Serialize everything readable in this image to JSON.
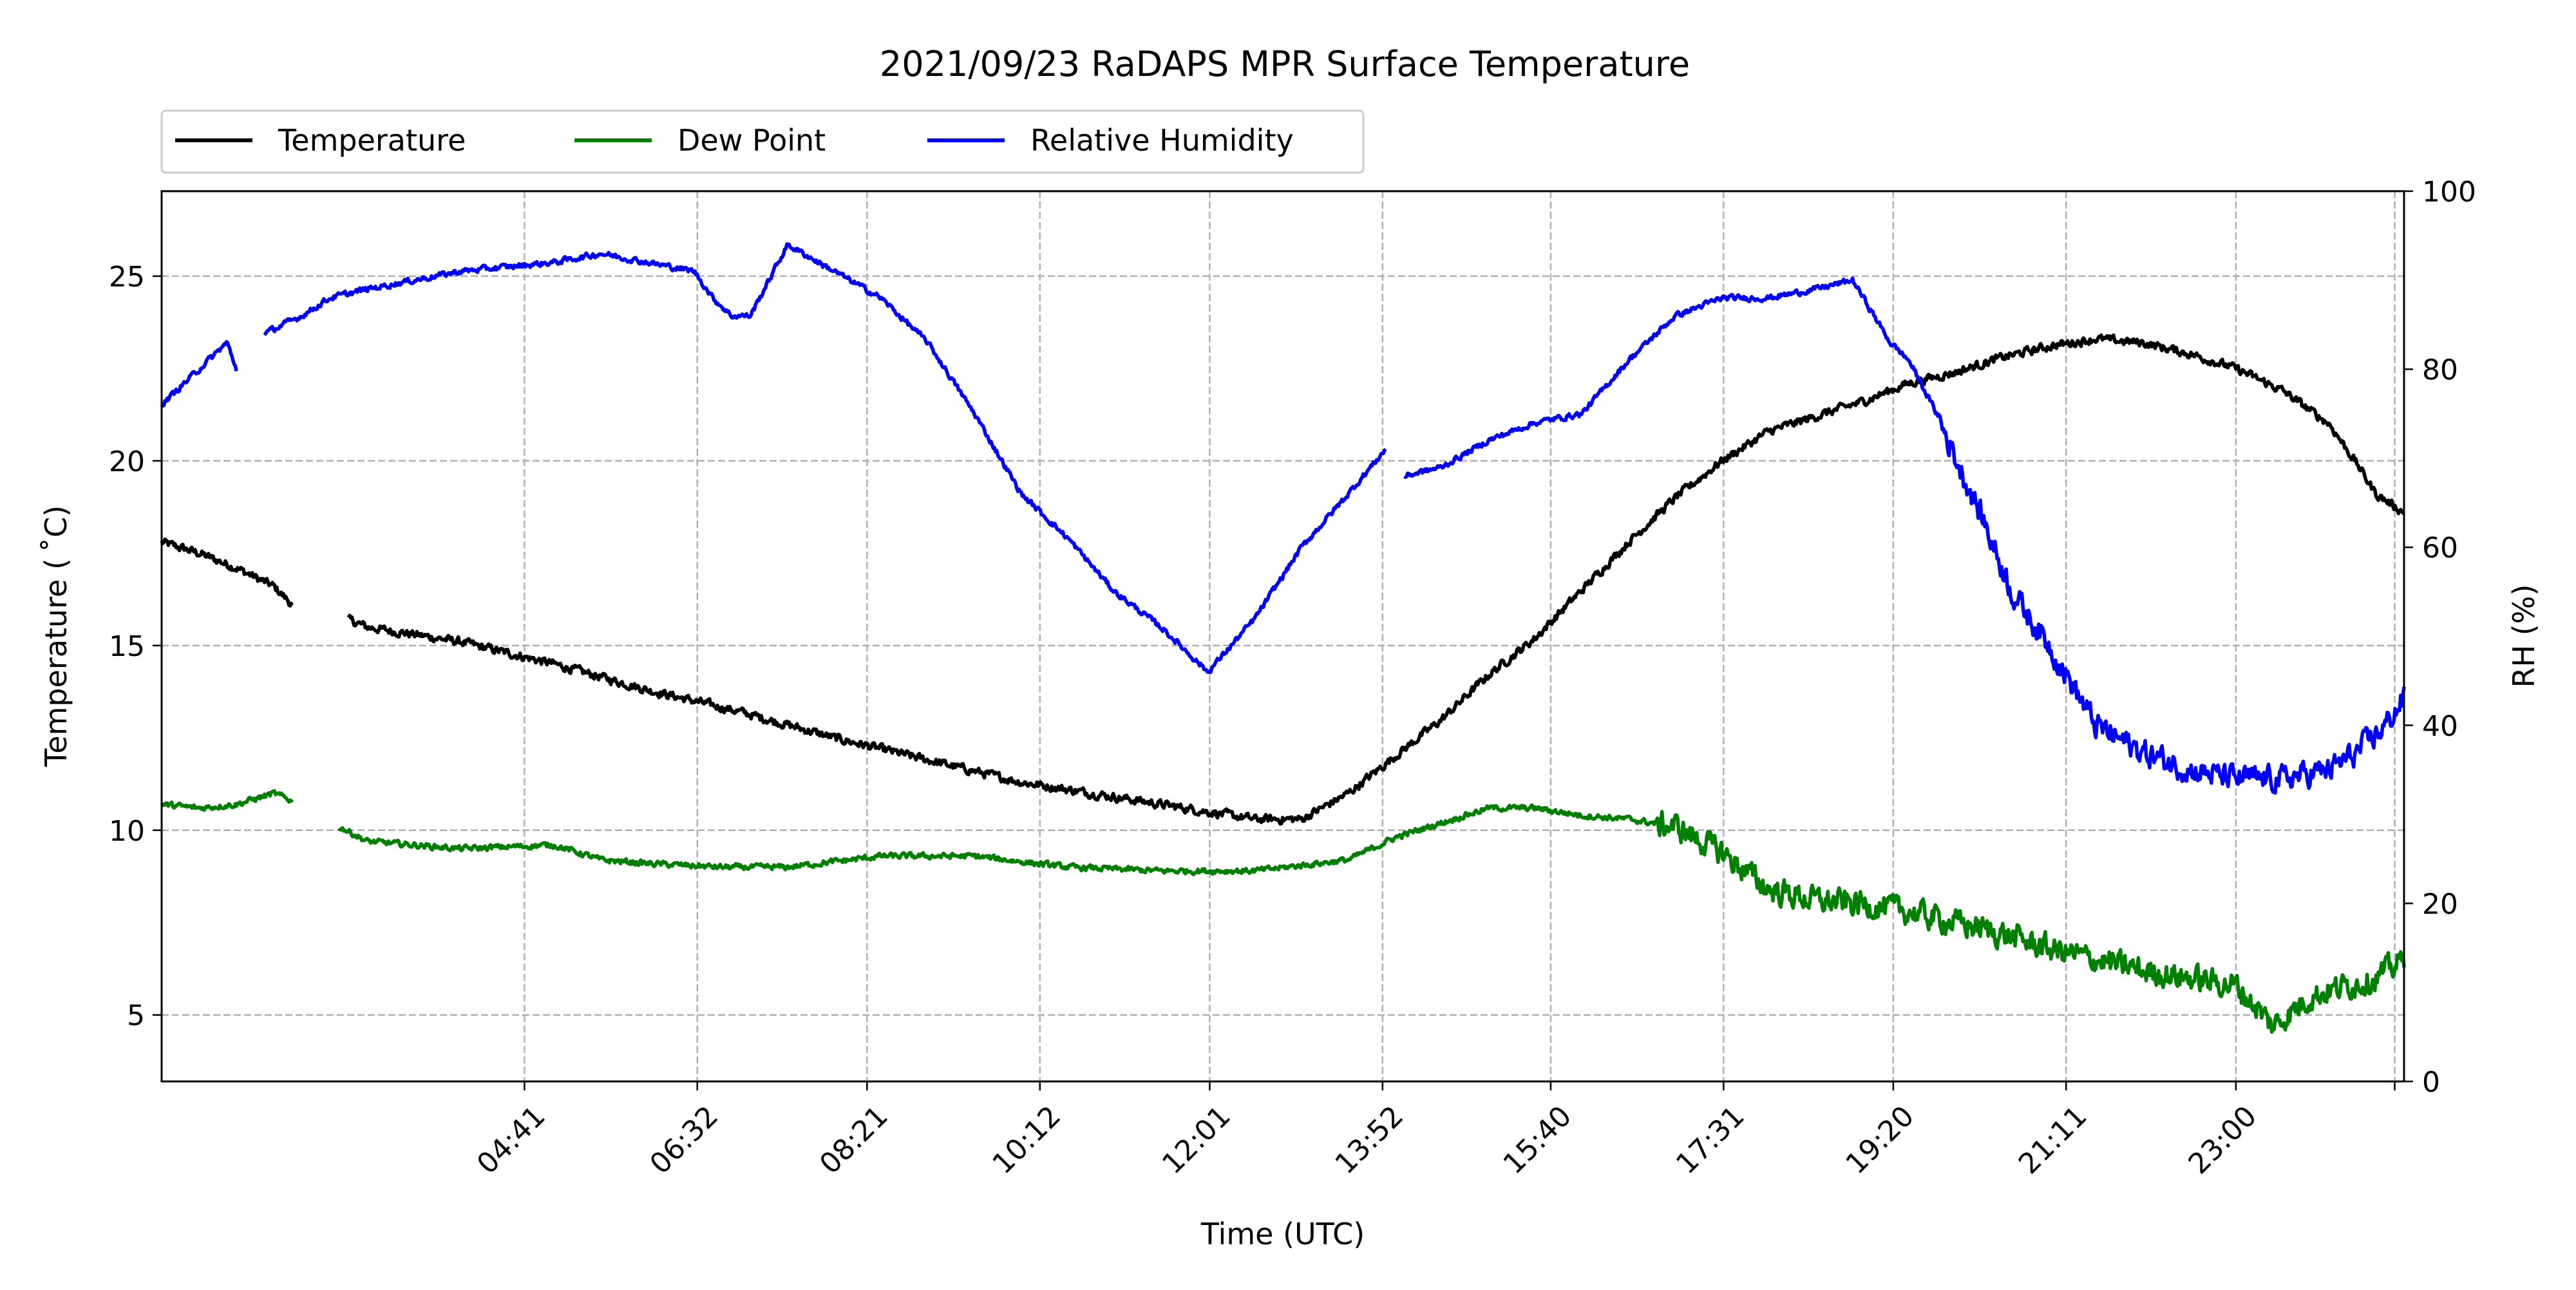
{
  "chart_data": {
    "type": "line",
    "title": "2021/09/23 RaDAPS MPR Surface Temperature",
    "xlabel": "Time (UTC)",
    "ylabel": "Temperature ($^\\circ$C)",
    "ylabel_display": "Temperature ( ˚C)",
    "y2label": "RH (%)",
    "x_unit": "hours UTC",
    "xlim": [
      0.8,
      24.8
    ],
    "ylim": [
      3.2,
      27.3
    ],
    "y2lim": [
      0,
      100
    ],
    "grid": true,
    "legend_placement": "top-left, above plot",
    "x_ticks": [
      {
        "value": 4.683,
        "label": "04:41"
      },
      {
        "value": 6.533,
        "label": "06:32"
      },
      {
        "value": 8.35,
        "label": "08:21"
      },
      {
        "value": 10.2,
        "label": "10:12"
      },
      {
        "value": 12.017,
        "label": "12:01"
      },
      {
        "value": 13.867,
        "label": "13:52"
      },
      {
        "value": 15.667,
        "label": "15:40"
      },
      {
        "value": 17.517,
        "label": "17:31"
      },
      {
        "value": 19.333,
        "label": "19:20"
      },
      {
        "value": 21.183,
        "label": "21:11"
      },
      {
        "value": 23.0,
        "label": "23:00"
      },
      {
        "value": 24.7,
        "label": ""
      }
    ],
    "y_ticks": [
      5,
      10,
      15,
      20,
      25
    ],
    "y2_ticks": [
      0,
      20,
      40,
      60,
      80,
      100
    ],
    "series": [
      {
        "name": "Temperature",
        "axis": "left",
        "color": "#000000",
        "jitter": 0.18,
        "segments": [
          [
            [
              0.8,
              17.8
            ],
            [
              1.2,
              17.5
            ],
            [
              1.6,
              17.1
            ],
            [
              2.0,
              16.6
            ],
            [
              2.2,
              16.1
            ]
          ],
          [
            [
              2.8,
              15.7
            ],
            [
              3.0,
              15.5
            ],
            [
              4.0,
              15.1
            ],
            [
              5.0,
              14.5
            ],
            [
              6.0,
              13.8
            ],
            [
              7.0,
              13.2
            ],
            [
              8.0,
              12.5
            ],
            [
              9.0,
              11.9
            ],
            [
              10.0,
              11.3
            ],
            [
              11.0,
              10.9
            ],
            [
              12.0,
              10.5
            ],
            [
              12.5,
              10.3
            ],
            [
              13.0,
              10.3
            ],
            [
              13.5,
              11.0
            ],
            [
              14.0,
              12.0
            ],
            [
              14.5,
              13.0
            ],
            [
              15.0,
              14.2
            ],
            [
              15.5,
              15.2
            ],
            [
              16.0,
              16.5
            ],
            [
              16.5,
              17.8
            ],
            [
              17.0,
              19.0
            ],
            [
              17.5,
              20.0
            ],
            [
              18.0,
              20.8
            ],
            [
              18.5,
              21.2
            ],
            [
              19.0,
              21.6
            ],
            [
              19.5,
              22.1
            ],
            [
              20.0,
              22.4
            ],
            [
              20.5,
              22.8
            ],
            [
              21.0,
              23.1
            ],
            [
              21.5,
              23.3
            ],
            [
              22.0,
              23.2
            ],
            [
              22.5,
              22.9
            ],
            [
              23.0,
              22.5
            ],
            [
              23.5,
              21.9
            ],
            [
              24.0,
              21.0
            ],
            [
              24.3,
              19.9
            ],
            [
              24.5,
              19.1
            ],
            [
              24.8,
              18.6
            ]
          ]
        ]
      },
      {
        "name": "Dew Point",
        "axis": "left",
        "color": "#008000",
        "jitter": 0.12,
        "noisy_from": 16.8,
        "noise_amp": 0.55,
        "segments": [
          [
            [
              0.8,
              10.7
            ],
            [
              1.2,
              10.6
            ],
            [
              1.6,
              10.7
            ],
            [
              2.0,
              11.0
            ],
            [
              2.2,
              10.8
            ]
          ],
          [
            [
              2.7,
              10.1
            ],
            [
              3.0,
              9.7
            ],
            [
              4.0,
              9.5
            ],
            [
              5.0,
              9.6
            ],
            [
              5.5,
              9.2
            ],
            [
              6.0,
              9.1
            ],
            [
              6.8,
              9.0
            ],
            [
              7.5,
              9.0
            ],
            [
              8.5,
              9.3
            ],
            [
              9.5,
              9.3
            ],
            [
              10.5,
              9.0
            ],
            [
              11.5,
              8.9
            ],
            [
              12.5,
              8.9
            ],
            [
              13.5,
              9.2
            ],
            [
              14.0,
              9.8
            ],
            [
              14.5,
              10.2
            ],
            [
              15.0,
              10.6
            ],
            [
              15.5,
              10.6
            ],
            [
              16.0,
              10.4
            ],
            [
              16.5,
              10.3
            ],
            [
              17.0,
              10.1
            ],
            [
              17.5,
              9.4
            ],
            [
              18.0,
              8.4
            ],
            [
              18.5,
              8.1
            ],
            [
              19.0,
              8.0
            ],
            [
              19.5,
              7.8
            ],
            [
              20.0,
              7.5
            ],
            [
              20.5,
              7.2
            ],
            [
              21.0,
              6.8
            ],
            [
              21.5,
              6.5
            ],
            [
              22.0,
              6.2
            ],
            [
              22.5,
              6.0
            ],
            [
              23.0,
              5.8
            ],
            [
              23.4,
              4.7
            ],
            [
              23.8,
              5.5
            ],
            [
              24.2,
              5.8
            ],
            [
              24.5,
              6.0
            ],
            [
              24.8,
              6.5
            ]
          ]
        ]
      },
      {
        "name": "Relative Humidity",
        "axis": "right",
        "color": "#0000ff",
        "jitter": 0.5,
        "noisy_from": 19.8,
        "noise_amp": 2.2,
        "segments": [
          [
            [
              0.8,
              76
            ],
            [
              1.2,
              80
            ],
            [
              1.5,
              83
            ],
            [
              1.6,
              80
            ]
          ],
          [
            [
              1.9,
              84
            ],
            [
              2.3,
              86
            ],
            [
              2.6,
              88
            ],
            [
              3.0,
              89
            ],
            [
              3.5,
              90
            ],
            [
              4.0,
              91
            ],
            [
              4.5,
              91.5
            ],
            [
              5.0,
              92
            ],
            [
              5.5,
              93
            ],
            [
              6.0,
              92
            ],
            [
              6.5,
              91
            ],
            [
              6.7,
              88
            ],
            [
              6.9,
              86
            ],
            [
              7.1,
              86
            ],
            [
              7.3,
              90
            ],
            [
              7.5,
              94
            ],
            [
              8.0,
              91
            ],
            [
              8.5,
              88
            ],
            [
              9.0,
              83
            ],
            [
              9.5,
              75
            ],
            [
              10.0,
              66
            ],
            [
              10.5,
              61
            ],
            [
              11.0,
              55
            ],
            [
              11.5,
              51
            ],
            [
              12.0,
              46
            ],
            [
              12.5,
              52
            ],
            [
              13.0,
              60
            ],
            [
              13.5,
              66
            ],
            [
              13.9,
              71
            ]
          ],
          [
            [
              14.1,
              68
            ],
            [
              14.5,
              69
            ],
            [
              15.0,
              72
            ],
            [
              15.5,
              74
            ],
            [
              16.0,
              75
            ],
            [
              16.5,
              81
            ],
            [
              17.0,
              86
            ],
            [
              17.5,
              88
            ],
            [
              18.0,
              88
            ],
            [
              18.5,
              89
            ],
            [
              18.9,
              90
            ],
            [
              19.3,
              83
            ],
            [
              19.5,
              81
            ],
            [
              19.8,
              75
            ],
            [
              20.0,
              70
            ],
            [
              20.3,
              63
            ],
            [
              20.6,
              55
            ],
            [
              21.0,
              49
            ],
            [
              21.5,
              40
            ],
            [
              22.0,
              37
            ],
            [
              22.5,
              35
            ],
            [
              23.0,
              34
            ],
            [
              23.5,
              34
            ],
            [
              24.0,
              35
            ],
            [
              24.3,
              37
            ],
            [
              24.6,
              40
            ],
            [
              24.8,
              43
            ]
          ]
        ]
      }
    ]
  }
}
